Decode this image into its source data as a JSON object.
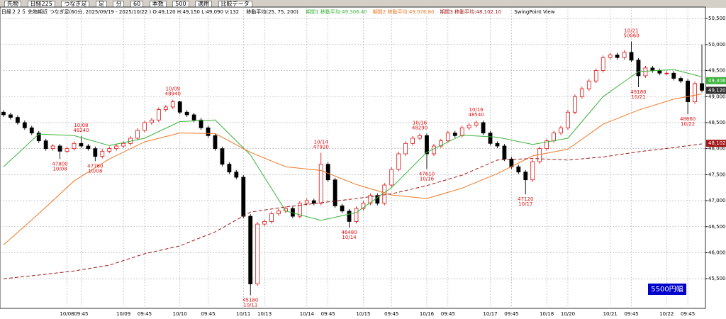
{
  "toolbar": {
    "items": [
      "先物",
      "日経225",
      "つなぎ足",
      "足",
      "分",
      "60",
      "本数",
      "500",
      "適用",
      "比較データ"
    ]
  },
  "info": {
    "symbol": "日経２２５ 先物期近 つなぎ足(60分, 2025/09/19 - 2025/10/22 ) O:49,120 H:49,150 L:49,090 V:132",
    "ma_title": "移動平均(25, 75, 200)",
    "view": "SwingPoint View"
  },
  "chart_data": {
    "type": "candlestick",
    "categories": [
      null,
      null,
      null,
      null,
      null,
      null,
      null,
      null,
      null,
      "10/08",
      null,
      "09:45",
      null,
      null,
      null,
      null,
      null,
      "10/09",
      null,
      null,
      "09:45",
      null,
      null,
      null,
      null,
      "10/10",
      null,
      null,
      null,
      "09:45",
      null,
      null,
      null,
      null,
      "10/11",
      null,
      null,
      "10/13",
      null,
      null,
      null,
      null,
      null,
      "10/14",
      null,
      null,
      "09:45",
      null,
      null,
      null,
      null,
      "10/15",
      null,
      null,
      null,
      "09:45",
      null,
      null,
      null,
      null,
      "10/16",
      null,
      null,
      "09:45",
      null,
      null,
      null,
      null,
      null,
      "10/17",
      null,
      null,
      "09:45",
      null,
      null,
      null,
      null,
      "10/18",
      null,
      null,
      "10/20",
      null,
      null,
      null,
      null,
      null,
      "10/21",
      null,
      null,
      "09:45",
      null,
      null,
      null,
      null,
      "10/22",
      null,
      null,
      "09:45",
      null,
      null
    ],
    "open": [
      48700,
      48650,
      48600,
      48500,
      48400,
      48300,
      48150,
      48000,
      48050,
      47950,
      48000,
      48100,
      48050,
      48000,
      47850,
      47950,
      48000,
      48050,
      48100,
      48200,
      48350,
      48500,
      48550,
      48750,
      48800,
      48900,
      48700,
      48650,
      48550,
      48400,
      48250,
      48000,
      47700,
      47550,
      47450,
      46700,
      45400,
      46550,
      46600,
      46750,
      46800,
      46850,
      46700,
      46950,
      47000,
      46950,
      47700,
      47400,
      46900,
      46800,
      46600,
      46850,
      46950,
      47100,
      46950,
      47300,
      47600,
      47900,
      48100,
      48200,
      48250,
      47900,
      48050,
      48150,
      48300,
      48250,
      48400,
      48450,
      48500,
      48300,
      48100,
      48050,
      47800,
      47650,
      47550,
      47400,
      47750,
      48000,
      48150,
      48300,
      48400,
      48700,
      49000,
      49150,
      49300,
      49500,
      49750,
      49800,
      49750,
      49850,
      49700,
      49400,
      49550,
      49500,
      49450,
      49450,
      49350,
      49300,
      48900,
      49250
    ],
    "high": [
      48740,
      48690,
      48640,
      48540,
      48440,
      48340,
      48190,
      48090,
      48090,
      48040,
      48140,
      48240,
      48090,
      48040,
      47990,
      48040,
      48090,
      48140,
      48240,
      48390,
      48540,
      48590,
      48790,
      48840,
      48940,
      48920,
      48740,
      48690,
      48590,
      48440,
      48290,
      48040,
      47740,
      47590,
      47490,
      46740,
      46590,
      46640,
      46790,
      46840,
      46890,
      46890,
      46990,
      47040,
      47040,
      47920,
      47740,
      47440,
      46940,
      46840,
      46890,
      46990,
      47140,
      47140,
      47340,
      47640,
      47940,
      48140,
      48240,
      48290,
      48290,
      48090,
      48190,
      48340,
      48340,
      48440,
      48490,
      48540,
      48540,
      48340,
      48140,
      48090,
      47840,
      47690,
      47590,
      47790,
      48040,
      48190,
      48340,
      48440,
      48740,
      49040,
      49190,
      49340,
      49540,
      49790,
      49840,
      49840,
      49890,
      50060,
      49740,
      49590,
      49590,
      49540,
      49490,
      49490,
      49390,
      49340,
      49290,
      50000
    ],
    "low": [
      48610,
      48560,
      48460,
      48360,
      48260,
      48110,
      47960,
      47960,
      47800,
      47910,
      47960,
      48010,
      47960,
      47760,
      47810,
      47910,
      47960,
      48010,
      48060,
      48160,
      48310,
      48460,
      48510,
      48710,
      48760,
      48660,
      48610,
      48510,
      48360,
      48210,
      47960,
      47660,
      47510,
      47410,
      46660,
      45180,
      45360,
      46510,
      46560,
      46710,
      46760,
      46660,
      46660,
      46910,
      46910,
      46910,
      47360,
      46860,
      46760,
      46480,
      46560,
      46810,
      46910,
      46910,
      46910,
      47260,
      47560,
      47860,
      48060,
      48160,
      47610,
      47860,
      48010,
      48110,
      48210,
      48210,
      48360,
      48410,
      48260,
      48060,
      48010,
      47760,
      47610,
      47510,
      47120,
      47360,
      47710,
      47960,
      48110,
      48260,
      48360,
      48660,
      48960,
      49110,
      49260,
      49460,
      49710,
      49710,
      49710,
      49660,
      49180,
      49360,
      49460,
      49410,
      49410,
      49310,
      49260,
      48660,
      48860,
      49080
    ],
    "close": [
      48650,
      48600,
      48500,
      48400,
      48300,
      48150,
      48000,
      48050,
      47950,
      48000,
      48100,
      48050,
      48000,
      47850,
      47950,
      48000,
      48050,
      48100,
      48200,
      48350,
      48500,
      48550,
      48750,
      48800,
      48900,
      48700,
      48650,
      48550,
      48400,
      48250,
      48000,
      47700,
      47550,
      47450,
      46700,
      45400,
      46550,
      46600,
      46750,
      46800,
      46850,
      46700,
      46950,
      47000,
      46950,
      47700,
      47400,
      46900,
      46800,
      46600,
      46850,
      46950,
      47100,
      46950,
      47300,
      47600,
      47900,
      48100,
      48200,
      48250,
      47900,
      48050,
      48150,
      48300,
      48250,
      48400,
      48450,
      48500,
      48300,
      48100,
      48050,
      47800,
      47650,
      47550,
      47400,
      47750,
      48000,
      48150,
      48300,
      48400,
      48700,
      49000,
      49150,
      49300,
      49500,
      49750,
      49800,
      49750,
      49850,
      49700,
      49400,
      49550,
      49500,
      49450,
      49450,
      49350,
      49300,
      48900,
      49250,
      49120
    ],
    "up_color": "#e01010",
    "down_color": "#000000",
    "ma_series": [
      {
        "name": "期間1 移動平均:49,306.40",
        "color": "#3cb43c",
        "dashed": false,
        "x": [
          0,
          5,
          10,
          15,
          20,
          25,
          30,
          35,
          40,
          45,
          50,
          55,
          60,
          65,
          70,
          75,
          80,
          85,
          90,
          95,
          99
        ],
        "values": [
          47650,
          48280,
          48250,
          48060,
          48200,
          48520,
          48550,
          47880,
          46800,
          46620,
          46770,
          47250,
          47930,
          48260,
          48220,
          48080,
          48200,
          49000,
          49480,
          49520,
          49380
        ]
      },
      {
        "name": "期間2 移動平均:49,076.80",
        "color": "#f07828",
        "dashed": false,
        "x": [
          0,
          5,
          10,
          15,
          20,
          25,
          30,
          35,
          40,
          45,
          50,
          55,
          60,
          65,
          70,
          75,
          80,
          85,
          90,
          95,
          99
        ],
        "values": [
          46150,
          46750,
          47380,
          47800,
          48130,
          48300,
          48290,
          47930,
          47650,
          47580,
          47310,
          47110,
          47040,
          47240,
          47520,
          47860,
          47990,
          48470,
          48740,
          48950,
          49050
        ]
      },
      {
        "name": "期間3 移動平均:48,102.10",
        "color": "#a01818",
        "dashed": true,
        "x": [
          0,
          5,
          10,
          15,
          20,
          25,
          30,
          35,
          40,
          45,
          50,
          55,
          60,
          65,
          70,
          75,
          80,
          85,
          90,
          95,
          99
        ],
        "values": [
          45500,
          45570,
          45650,
          45760,
          45980,
          46130,
          46400,
          46780,
          46880,
          46960,
          47040,
          47130,
          47290,
          47490,
          47780,
          47810,
          47780,
          47840,
          47940,
          48020,
          48090
        ]
      }
    ],
    "annotations": [
      {
        "x": 8,
        "price": 47800,
        "date": "10/08",
        "kind": "low"
      },
      {
        "x": 11,
        "price": 48240,
        "date": "10/08",
        "kind": "high"
      },
      {
        "x": 13,
        "price": 47760,
        "date": "10/08",
        "kind": "low"
      },
      {
        "x": 24,
        "price": 48940,
        "date": "10/09",
        "kind": "high"
      },
      {
        "x": 35,
        "price": 45180,
        "date": "10/11",
        "kind": "low"
      },
      {
        "x": 45,
        "price": 47920,
        "date": "10/14",
        "kind": "high"
      },
      {
        "x": 49,
        "price": 46480,
        "date": "10/14",
        "kind": "low"
      },
      {
        "x": 59,
        "price": 48290,
        "date": "10/16",
        "kind": "high"
      },
      {
        "x": 60,
        "price": 47610,
        "date": "10/16",
        "kind": "low"
      },
      {
        "x": 67,
        "price": 48540,
        "date": "10/16",
        "kind": "high"
      },
      {
        "x": 74,
        "price": 47120,
        "date": "10/17",
        "kind": "low"
      },
      {
        "x": 89,
        "price": 50060,
        "date": "10/21",
        "kind": "high"
      },
      {
        "x": 90,
        "price": 49180,
        "date": "10/21",
        "kind": "low"
      },
      {
        "x": 97,
        "price": 48660,
        "date": "10/22",
        "kind": "low"
      }
    ],
    "price_tags": [
      {
        "value": 49306,
        "label": "49,306",
        "color": "#3cb43c"
      },
      {
        "value": 49120,
        "label": "49,120",
        "color": "#303030"
      },
      {
        "value": 48102,
        "label": "48,102",
        "color": "#a01818"
      }
    ],
    "range_box": "5500円幅",
    "ylim": [
      44930,
      50720
    ],
    "yticks": [
      {
        "value": 45500,
        "label": "45,500"
      },
      {
        "value": 46000,
        "label": "46,000"
      },
      {
        "value": 46500,
        "label": "46,500"
      },
      {
        "value": 47000,
        "label": "47,000"
      },
      {
        "value": 47500,
        "label": "47,500"
      },
      {
        "value": 48000,
        "label": "48,000"
      },
      {
        "value": 48500,
        "label": "48,500"
      },
      {
        "value": 49000,
        "label": "49,000"
      },
      {
        "value": 49500,
        "label": "49,500"
      },
      {
        "value": 50000,
        "label": "50,000"
      },
      {
        "value": 50500,
        "label": "50,500"
      }
    ],
    "grid": true
  }
}
